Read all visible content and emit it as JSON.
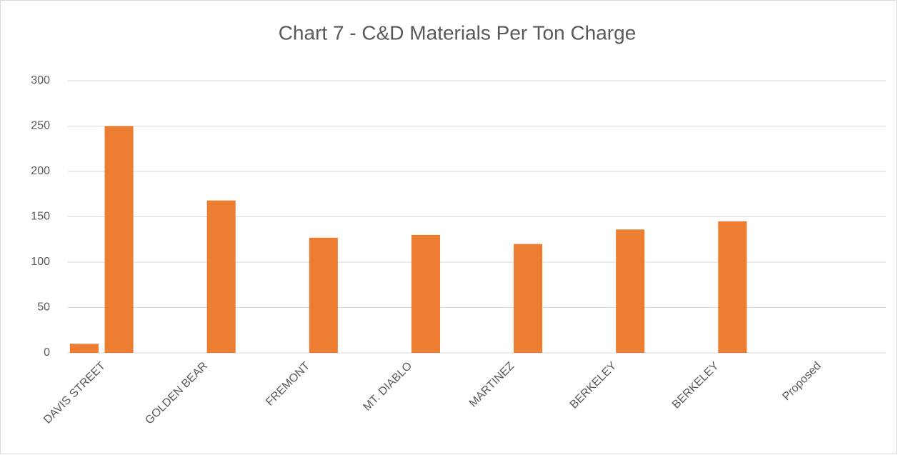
{
  "chart_data": {
    "type": "bar",
    "title": "Chart 7 - C&D Materials Per Ton Charge",
    "categories": [
      "DAVIS STREET",
      "GOLDEN BEAR",
      "FREMONT",
      "MT. DIABLO",
      "MARTINEZ",
      "BERKELEY",
      "BERKELEY",
      "Proposed"
    ],
    "series": [
      {
        "color": "#ed7d31",
        "values": [
          10,
          null,
          null,
          null,
          null,
          null,
          null,
          null
        ]
      },
      {
        "color": "#ed7d31",
        "values": [
          250,
          168,
          127,
          130,
          120,
          136,
          145,
          null
        ]
      }
    ],
    "ylim": [
      0,
      300
    ],
    "yticks": [
      0,
      50,
      100,
      150,
      200,
      250,
      300
    ],
    "grid": true
  }
}
